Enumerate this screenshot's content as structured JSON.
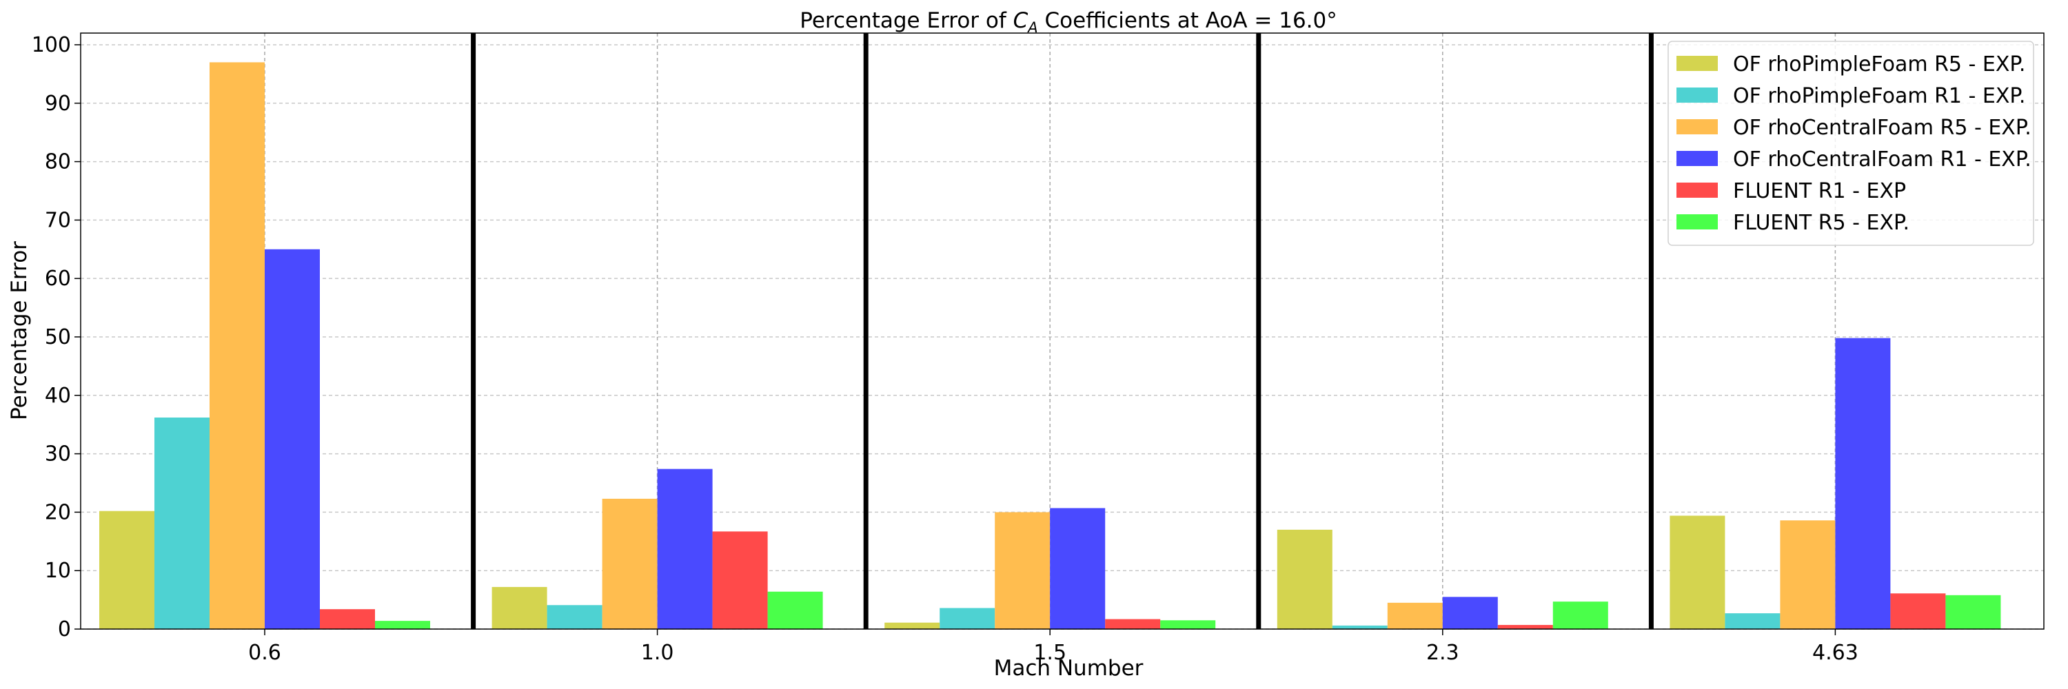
{
  "chart_data": {
    "type": "bar",
    "title_prefix": "Percentage Error of ",
    "title_var": "C",
    "title_sub": "A",
    "title_suffix": " Coefficients at AoA = 16.0°",
    "xlabel": "Mach Number",
    "ylabel": "Percentage Error",
    "categories": [
      "0.6",
      "1.0",
      "1.5",
      "2.3",
      "4.63"
    ],
    "ylim": [
      0,
      102
    ],
    "yticks": [
      0,
      10,
      20,
      30,
      40,
      50,
      60,
      70,
      80,
      90,
      100
    ],
    "grid": true,
    "legend_position": "top-right",
    "series": [
      {
        "name": "OF rhoPimpleFoam R5 - EXP.",
        "color": "#d4d44f",
        "values": [
          20.2,
          7.2,
          1.1,
          17.0,
          19.4
        ]
      },
      {
        "name": "OF rhoPimpleFoam R1 - EXP.",
        "color": "#4ed2d2",
        "values": [
          36.2,
          4.1,
          3.6,
          0.6,
          2.7
        ]
      },
      {
        "name": "OF rhoCentralFoam R5 - EXP.",
        "color": "#ffbd4f",
        "values": [
          97.0,
          22.3,
          20.0,
          4.5,
          18.6
        ]
      },
      {
        "name": "OF rhoCentralFoam R1 - EXP.",
        "color": "#4a4aff",
        "values": [
          65.0,
          27.4,
          20.7,
          5.5,
          49.8
        ]
      },
      {
        "name": "FLUENT R1 - EXP",
        "color": "#ff4a4a",
        "values": [
          3.4,
          16.7,
          1.7,
          0.7,
          6.1
        ]
      },
      {
        "name": "FLUENT R5 - EXP.",
        "color": "#4aff4a",
        "values": [
          1.4,
          6.4,
          1.5,
          4.7,
          5.8
        ]
      }
    ]
  }
}
